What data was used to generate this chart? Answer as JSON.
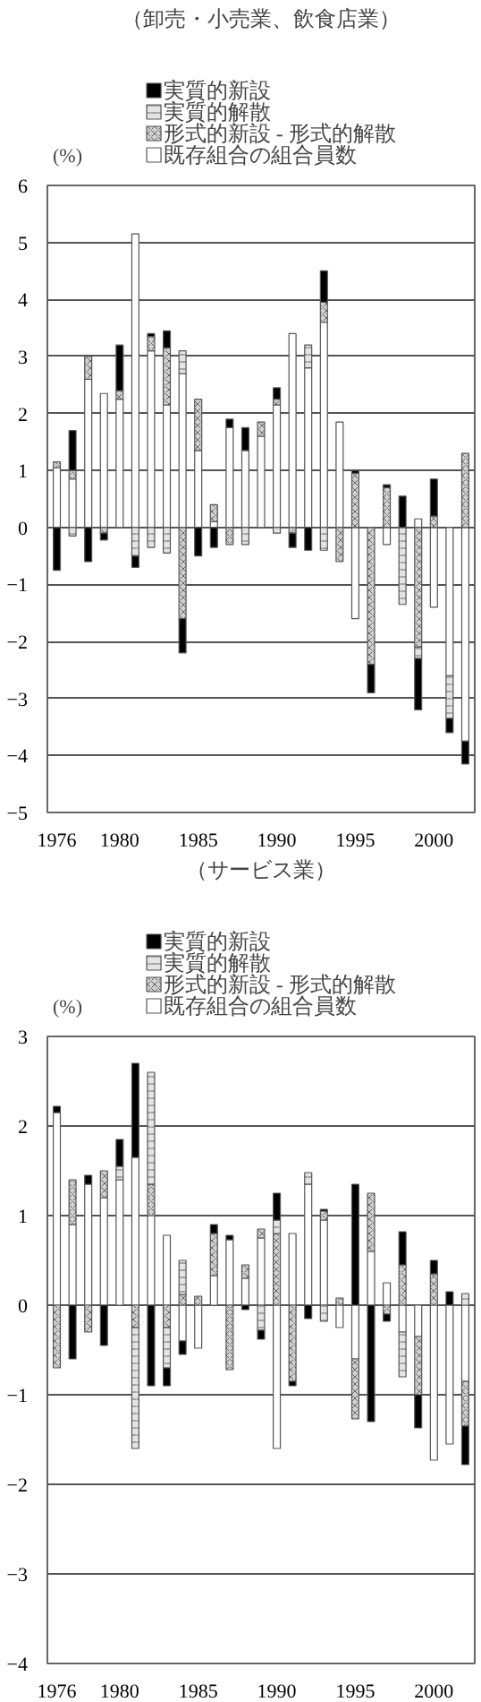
{
  "chart_data": [
    {
      "type": "bar",
      "title": "（卸売・小売業、飲食店業）",
      "ylabel": "(%)",
      "stacked": true,
      "legend": "top",
      "grid": "y",
      "x": [
        1976,
        1977,
        1978,
        1979,
        1980,
        1981,
        1982,
        1983,
        1984,
        1985,
        1986,
        1987,
        1988,
        1989,
        1990,
        1991,
        1992,
        1993,
        1994,
        1995,
        1996,
        1997,
        1998,
        1999,
        2000,
        2001,
        2002
      ],
      "xlim": [
        1975.4,
        2002.6
      ],
      "xticks": [
        1976,
        1980,
        1985,
        1990,
        1995,
        2000
      ],
      "ylim": [
        -5,
        6
      ],
      "yticks": [
        -5,
        -4,
        -3,
        -2,
        -1,
        0,
        1,
        2,
        3,
        4,
        5,
        6
      ],
      "series": [
        {
          "name": "既存組合の組合員数",
          "color": "#ffffff",
          "values": [
            1.05,
            0.85,
            2.6,
            2.35,
            2.25,
            5.15,
            3.1,
            2.15,
            2.7,
            1.35,
            0.1,
            1.75,
            1.35,
            1.6,
            2.15,
            3.4,
            2.8,
            3.6,
            1.85,
            -1.6,
            0,
            -0.3,
            0,
            0.15,
            -1.4,
            -2.6,
            -3.75
          ]
        },
        {
          "name": "形式的新設 - 形式的解散",
          "color": "#d0d0d0",
          "values": [
            0.1,
            0.15,
            0.4,
            -0.1,
            0.15,
            0,
            0.25,
            1.0,
            -1.6,
            0.9,
            0.3,
            -0.3,
            0,
            0.25,
            0.1,
            -0.1,
            0,
            0.35,
            -0.6,
            0.95,
            -2.4,
            0.7,
            0,
            -2.1,
            0.2,
            0,
            1.3
          ]
        },
        {
          "name": "実質的解散",
          "color": "#e4e4e4",
          "values": [
            0,
            -0.15,
            0,
            0,
            0,
            -0.5,
            -0.35,
            -0.45,
            0.4,
            0,
            0,
            0,
            -0.3,
            null,
            -0.1,
            0,
            0.4,
            -0.4,
            0,
            0,
            0,
            0,
            -1.35,
            -0.2,
            0,
            -0.75,
            0
          ]
        },
        {
          "name": "実質的新設",
          "color": "#000000",
          "values": [
            -0.75,
            0.7,
            -0.6,
            -0.12,
            0.8,
            -0.2,
            0.05,
            0.3,
            -0.6,
            -0.5,
            -0.35,
            0.15,
            0.4,
            0,
            0.2,
            -0.25,
            -0.4,
            0.55,
            0,
            0.05,
            -0.5,
            0.05,
            0.55,
            -0.9,
            0.65,
            -0.25,
            -0.4
          ]
        }
      ]
    },
    {
      "type": "bar",
      "title": "（サービス業）",
      "ylabel": "(%)",
      "stacked": true,
      "legend": "top",
      "grid": "y",
      "x": [
        1976,
        1977,
        1978,
        1979,
        1980,
        1981,
        1982,
        1983,
        1984,
        1985,
        1986,
        1987,
        1988,
        1989,
        1990,
        1991,
        1992,
        1993,
        1994,
        1995,
        1996,
        1997,
        1998,
        1999,
        2000,
        2001,
        2002
      ],
      "xlim": [
        1975.4,
        2002.6
      ],
      "xticks": [
        1976,
        1980,
        1985,
        1990,
        1995,
        2000
      ],
      "ylim": [
        -4,
        3
      ],
      "yticks": [
        -4,
        -3,
        -2,
        -1,
        0,
        1,
        2,
        3
      ],
      "series": [
        {
          "name": "既存組合の組合員数",
          "color": "#ffffff",
          "values": [
            2.15,
            0.9,
            1.35,
            1.2,
            1.4,
            1.65,
            1.0,
            0.78,
            -0.4,
            -0.48,
            0.33,
            0.73,
            0.3,
            0.75,
            -1.6,
            0.8,
            1.35,
            0.95,
            -0.25,
            -0.6,
            0.6,
            0.25,
            -0.3,
            -0.35,
            -1.73,
            -1.55,
            -0.85
          ]
        },
        {
          "name": "形式的新設 - 形式的解散",
          "color": "#d0d0d0",
          "values": [
            -0.7,
            0.5,
            -0.3,
            0.3,
            0,
            -0.25,
            0.35,
            -0.25,
            0.12,
            0.1,
            0.47,
            -0.72,
            0.15,
            0.1,
            0.8,
            -0.85,
            0,
            0.1,
            0.08,
            -0.67,
            0.65,
            -0.1,
            0.45,
            -0.65,
            0.35,
            0,
            -0.5
          ]
        },
        {
          "name": "実質的解散",
          "color": "#e4e4e4",
          "values": [
            0,
            0,
            0,
            0,
            0.15,
            -1.35,
            1.25,
            -0.45,
            0.38,
            0,
            null,
            0,
            0,
            -0.28,
            0.15,
            0,
            0.13,
            -0.18,
            0,
            0,
            0,
            0,
            -0.5,
            0,
            0,
            0,
            0.13
          ]
        },
        {
          "name": "実質的新設",
          "color": "#000000",
          "values": [
            0.07,
            -0.6,
            0.1,
            -0.45,
            0.3,
            1.05,
            -0.9,
            -0.2,
            -0.15,
            0,
            0.1,
            0.05,
            -0.05,
            -0.1,
            0.3,
            -0.05,
            -0.15,
            0.02,
            0,
            1.35,
            -1.3,
            -0.08,
            0.37,
            -0.37,
            0.15,
            0.15,
            -0.43
          ]
        }
      ]
    }
  ]
}
